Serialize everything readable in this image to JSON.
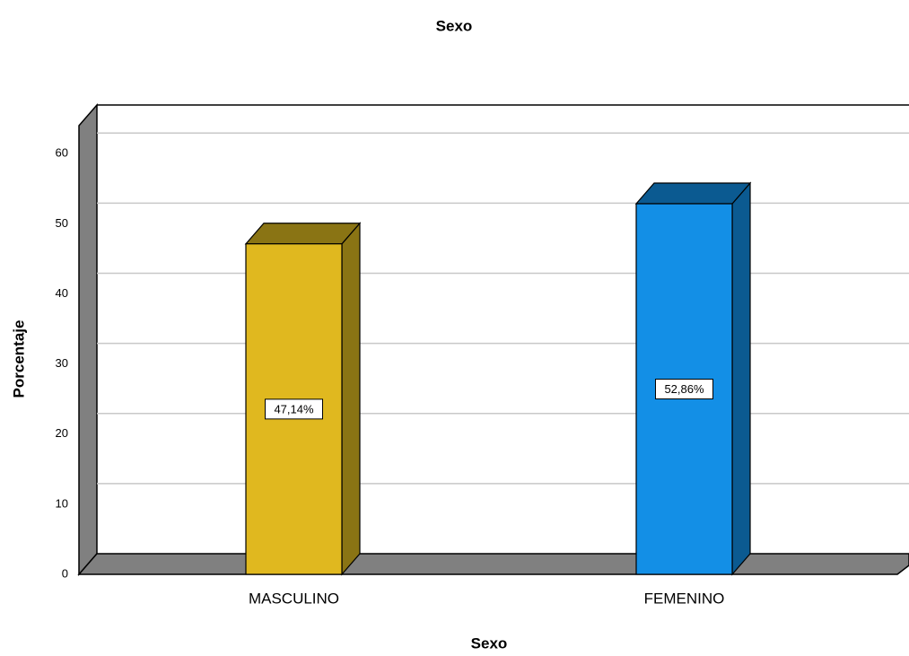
{
  "chart_data": {
    "type": "bar",
    "title": "Sexo",
    "x_label": "Sexo",
    "y_label": "Porcentaje",
    "categories": [
      "MASCULINO",
      "FEMENINO"
    ],
    "values": [
      47.14,
      52.86
    ],
    "value_labels": [
      "47,14%",
      "52,86%"
    ],
    "colors": [
      "#e0b81f",
      "#138fe6"
    ],
    "side_colors": [
      "#8a7414",
      "#0b5a91"
    ],
    "ylim": [
      0,
      64
    ],
    "yticks": [
      0,
      10,
      20,
      30,
      40,
      50,
      60
    ],
    "grid": true
  }
}
